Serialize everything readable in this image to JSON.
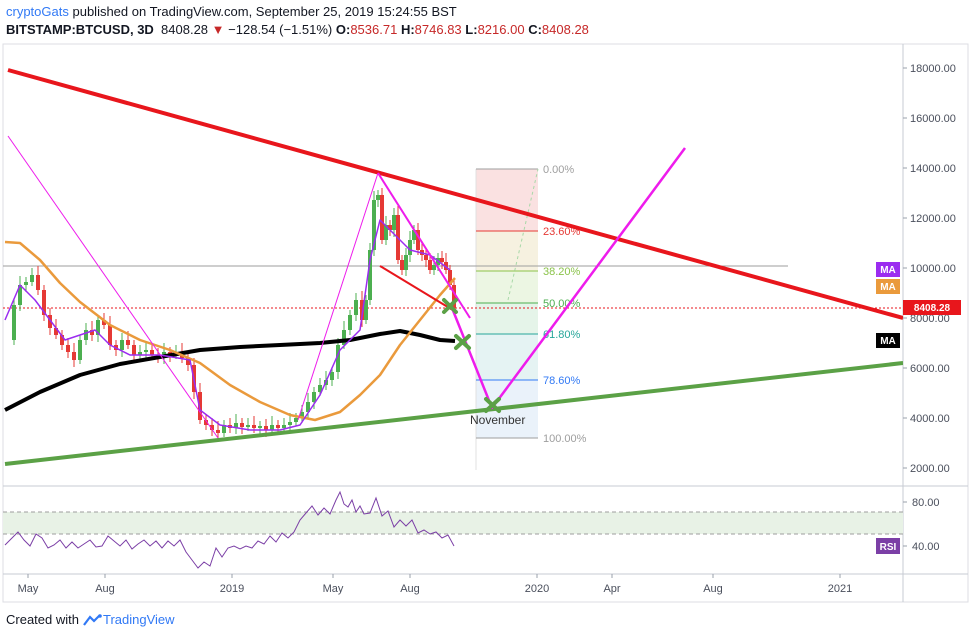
{
  "header": {
    "author": "cryptoGats",
    "published_text": "published on TradingView.com, September 25, 2019 15:24:55 BST",
    "symbol": "BITSTAMP:BTCUSD, 3D",
    "last": "8408.28",
    "change_arrow": "▼",
    "change": "−128.54 (−1.51%)",
    "open_label": "O:",
    "open": "8536.71",
    "high_label": "H:",
    "high": "8746.83",
    "low_label": "L:",
    "low": "8216.00",
    "close_label": "C:",
    "close": "8408.28"
  },
  "footer": {
    "created_with": "Created with",
    "brand": "TradingView"
  },
  "colors": {
    "trend_red": "#e8161c",
    "support_green": "#5ba146",
    "projection_magenta": "#ee1cec",
    "ma_black": "#000000",
    "ma_orange": "#ea9a3c",
    "ma_purple": "#9b2cf0",
    "rsi": "#7b3fa6",
    "up": "#4caf50",
    "down": "#e53935"
  },
  "chart_data": {
    "type": "candlestick",
    "symbol": "BITSTAMP:BTCUSD",
    "interval": "3D",
    "y_ticks": [
      "18000.00",
      "16000.00",
      "14000.00",
      "12000.00",
      "10000.00",
      "8000.00",
      "6000.00",
      "4000.00",
      "2000.00"
    ],
    "ylim": [
      1000,
      19800
    ],
    "x_ticks": [
      "May",
      "Aug",
      "2019",
      "May",
      "Aug",
      "2020",
      "Apr",
      "Aug",
      "2021"
    ],
    "price_badges": [
      {
        "label": "MA",
        "color": "#9b2cf0"
      },
      {
        "label": "MA",
        "color": "#ea9a3c"
      },
      {
        "label": "8408.28",
        "color": "#e8161c"
      },
      {
        "label": "MA",
        "color": "#000000"
      }
    ],
    "fibonacci": [
      {
        "level": "0.00%",
        "color": "#9e9e9e"
      },
      {
        "level": "23.60%",
        "color": "#e53935"
      },
      {
        "level": "38.20%",
        "color": "#8bc34a"
      },
      {
        "level": "50.00%",
        "color": "#4caf50"
      },
      {
        "level": "61.80%",
        "color": "#26a69a"
      },
      {
        "level": "78.60%",
        "color": "#3179f5"
      },
      {
        "level": "100.00%",
        "color": "#9e9e9e"
      }
    ],
    "annotation": "November",
    "rsi": {
      "label": "RSI",
      "y_ticks": [
        "80.00",
        "40.00"
      ],
      "band": [
        30,
        70
      ]
    }
  }
}
